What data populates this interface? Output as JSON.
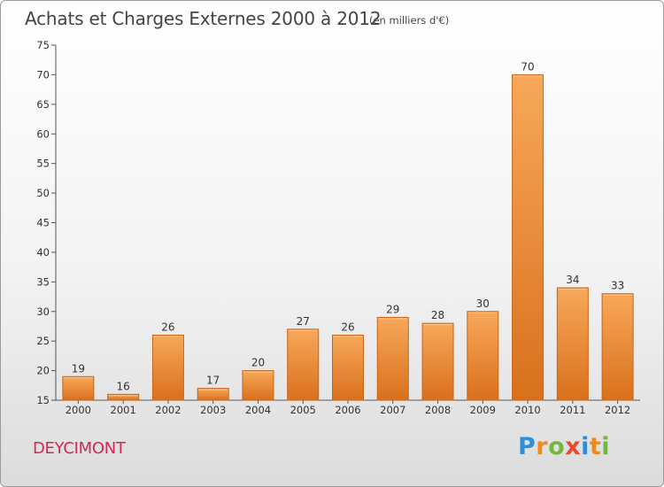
{
  "header": {
    "title": "Achats et Charges Externes 2000 à 2012",
    "subtitle": "(en milliers d'€)"
  },
  "footer": {
    "commune": "DEYCIMONT",
    "logo": {
      "letters": [
        "P",
        "r",
        "o",
        "x",
        "i",
        "t",
        "i"
      ],
      "colors": [
        "#2f8fd6",
        "#f08a1c",
        "#72b83a",
        "#e84a2c",
        "#2f8fd6",
        "#f08a1c",
        "#72b83a"
      ]
    }
  },
  "chart_data": {
    "type": "bar",
    "title": "Achats et Charges Externes 2000 à 2012",
    "subtitle": "(en milliers d'€)",
    "categories": [
      "2000",
      "2001",
      "2002",
      "2003",
      "2004",
      "2005",
      "2006",
      "2007",
      "2008",
      "2009",
      "2010",
      "2011",
      "2012"
    ],
    "values": [
      19,
      16,
      26,
      17,
      20,
      27,
      26,
      29,
      28,
      30,
      70,
      34,
      33
    ],
    "ylim": [
      15,
      75
    ],
    "yticks": [
      15,
      20,
      25,
      30,
      35,
      40,
      45,
      50,
      55,
      60,
      65,
      70,
      75
    ],
    "bar_color_top": "#f7a85a",
    "bar_color_bottom": "#d9701c",
    "bar_edge_color": "#c8651a",
    "grid": false,
    "legend": "none"
  }
}
